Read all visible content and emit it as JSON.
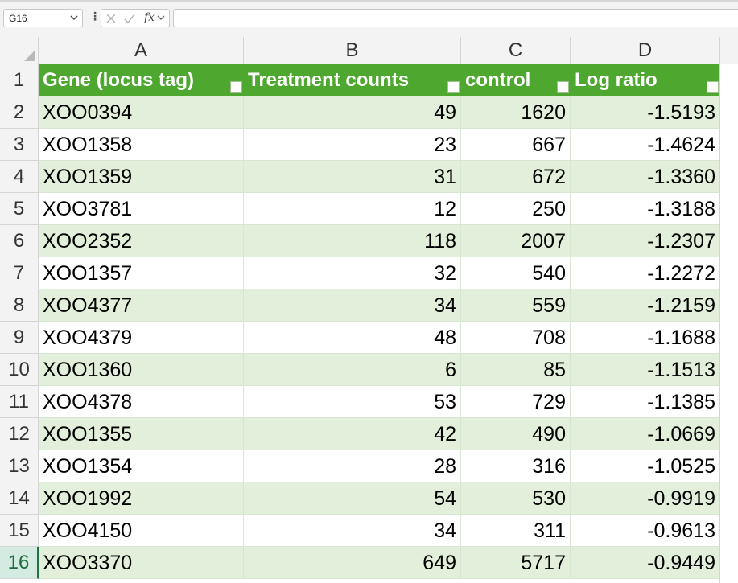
{
  "formula_bar": {
    "name_box": "G16",
    "fx_label": "fx",
    "formula": ""
  },
  "columns": [
    "A",
    "B",
    "C",
    "D"
  ],
  "table": {
    "headers": [
      "Gene (locus tag)",
      "Treatment counts",
      "control",
      "Log ratio"
    ],
    "rows": [
      [
        "XOO0394",
        "49",
        "1620",
        "-1.5193"
      ],
      [
        "XOO1358",
        "23",
        "667",
        "-1.4624"
      ],
      [
        "XOO1359",
        "31",
        "672",
        "-1.3360"
      ],
      [
        "XOO3781",
        "12",
        "250",
        "-1.3188"
      ],
      [
        "XOO2352",
        "118",
        "2007",
        "-1.2307"
      ],
      [
        "XOO1357",
        "32",
        "540",
        "-1.2272"
      ],
      [
        "XOO4377",
        "34",
        "559",
        "-1.2159"
      ],
      [
        "XOO4379",
        "48",
        "708",
        "-1.1688"
      ],
      [
        "XOO1360",
        "6",
        "85",
        "-1.1513"
      ],
      [
        "XOO4378",
        "53",
        "729",
        "-1.1385"
      ],
      [
        "XOO1355",
        "42",
        "490",
        "-1.0669"
      ],
      [
        "XOO1354",
        "28",
        "316",
        "-1.0525"
      ],
      [
        "XOO1992",
        "54",
        "530",
        "-0.9919"
      ],
      [
        "XOO4150",
        "34",
        "311",
        "-0.9613"
      ],
      [
        "XOO3370",
        "649",
        "5717",
        "-0.9449"
      ]
    ]
  },
  "row_numbers": [
    "1",
    "2",
    "3",
    "4",
    "5",
    "6",
    "7",
    "8",
    "9",
    "10",
    "11",
    "12",
    "13",
    "14",
    "15",
    "16"
  ],
  "active_row": "16",
  "colors": {
    "header_fill": "#4ea72e",
    "band_fill": "#e2efda",
    "active_header": "#217346"
  }
}
